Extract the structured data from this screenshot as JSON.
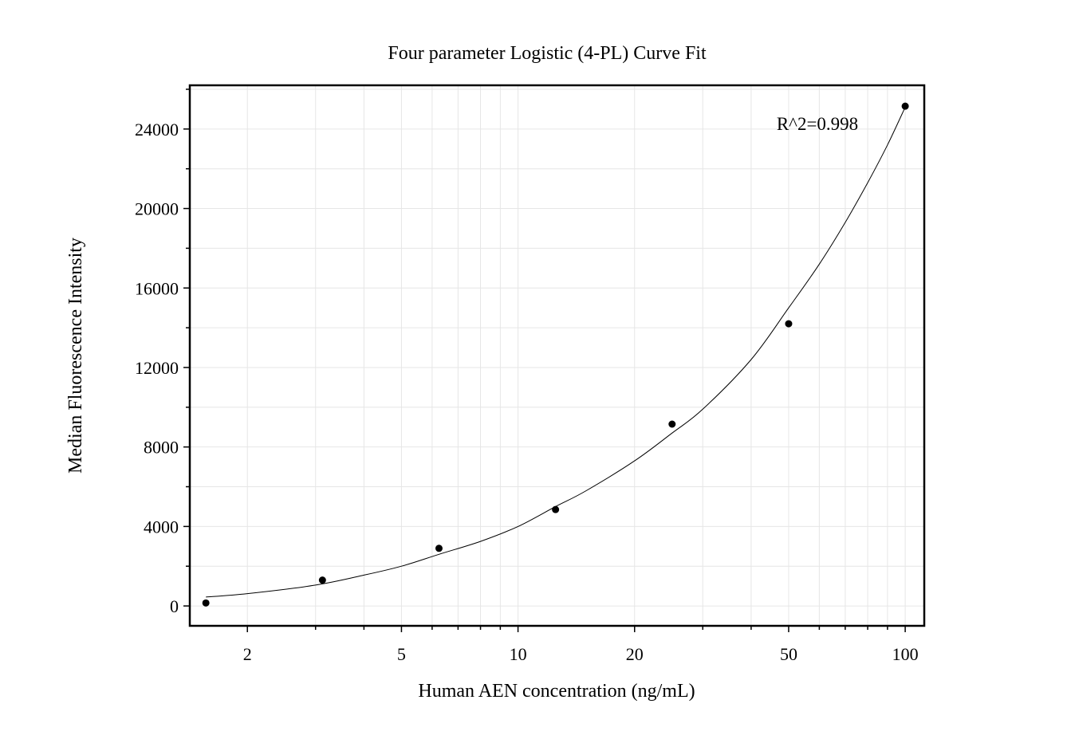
{
  "chart_data": {
    "type": "scatter",
    "title": "Four parameter Logistic (4-PL) Curve Fit",
    "xlabel": "Human AEN concentration (ng/mL)",
    "ylabel": "Median Fluorescence Intensity",
    "x_scale": "log",
    "xlim": [
      1.42,
      112
    ],
    "ylim": [
      -1000,
      26200
    ],
    "x_ticks": [
      {
        "value": 2,
        "label": "2"
      },
      {
        "value": 5,
        "label": "5"
      },
      {
        "value": 10,
        "label": "10"
      },
      {
        "value": 20,
        "label": "20"
      },
      {
        "value": 50,
        "label": "50"
      },
      {
        "value": 100,
        "label": "100"
      }
    ],
    "y_ticks": [
      {
        "value": 0,
        "label": "0"
      },
      {
        "value": 4000,
        "label": "4000"
      },
      {
        "value": 8000,
        "label": "8000"
      },
      {
        "value": 12000,
        "label": "12000"
      },
      {
        "value": 16000,
        "label": "16000"
      },
      {
        "value": 20000,
        "label": "20000"
      },
      {
        "value": 24000,
        "label": "24000"
      }
    ],
    "grid": true,
    "series": [
      {
        "points": [
          {
            "x": 1.5625,
            "y": 150
          },
          {
            "x": 3.125,
            "y": 1300
          },
          {
            "x": 6.25,
            "y": 2900
          },
          {
            "x": 12.5,
            "y": 4850
          },
          {
            "x": 25,
            "y": 9150
          },
          {
            "x": 50,
            "y": 14200
          },
          {
            "x": 100,
            "y": 25150
          }
        ]
      }
    ],
    "fit_curve": {
      "type": "4-PL",
      "x": [
        1.5625,
        2,
        3,
        4,
        5,
        6.25,
        8,
        10,
        12.5,
        15,
        20,
        25,
        30,
        40,
        50,
        60,
        70,
        80,
        90,
        100
      ],
      "y": [
        450,
        620,
        1050,
        1550,
        2000,
        2600,
        3250,
        4000,
        5000,
        5800,
        7300,
        8700,
        9900,
        12400,
        15000,
        17200,
        19300,
        21300,
        23200,
        25100
      ]
    },
    "annotations": [
      {
        "text": "R^2=0.998",
        "position": "top-right"
      }
    ],
    "colors": {
      "points": "#000000",
      "curve": "#000000",
      "grid": "#e6e6e6",
      "frame": "#000000"
    }
  }
}
